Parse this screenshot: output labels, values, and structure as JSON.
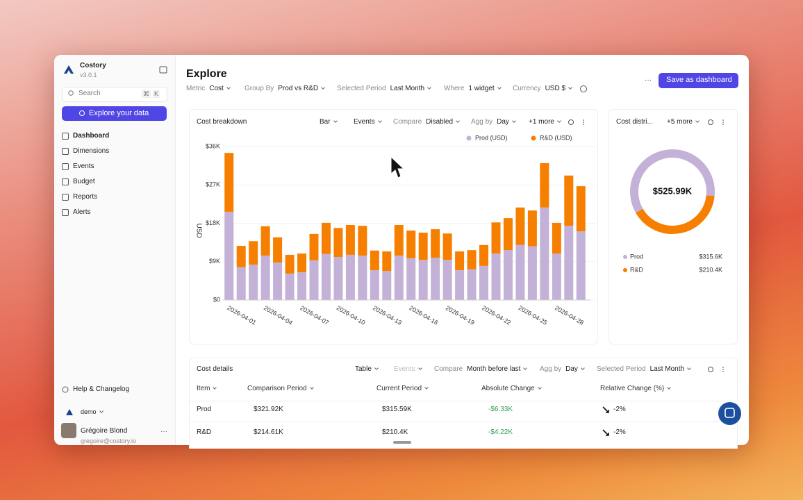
{
  "app": {
    "name": "Costory",
    "version": "v3.0.1",
    "search": "Search",
    "search_keys": [
      "⌘",
      "K"
    ],
    "cta": "Explore your data",
    "nav": [
      "Dashboard",
      "Dimensions",
      "Events",
      "Budget",
      "Reports",
      "Alerts"
    ],
    "help": "Help & Changelog",
    "workspace": "demo",
    "user": {
      "name": "Grégoire Blond",
      "email": "gregoire@costory.io"
    }
  },
  "header": {
    "title": "Explore",
    "filters": [
      {
        "label": "Metric",
        "value": "Cost"
      },
      {
        "label": "Group By",
        "value": "Prod vs R&D"
      },
      {
        "label": "Selected Period",
        "value": "Last Month"
      },
      {
        "label": "Where",
        "value": "1 widget"
      },
      {
        "label": "Currency",
        "value": "USD $"
      }
    ],
    "more": "···",
    "save": "Save as dashboard"
  },
  "panels": {
    "breakdown": {
      "title": "Cost breakdown",
      "controls": [
        {
          "value": "Bar"
        },
        {
          "value": "Events"
        },
        {
          "label": "Compare",
          "value": "Disabled"
        },
        {
          "label": "Agg by",
          "value": "Day"
        },
        {
          "value": "+1 more"
        }
      ]
    },
    "distribution": {
      "title": "Cost distri...",
      "controls": [
        {
          "value": "+5 more"
        }
      ]
    },
    "details": {
      "title": "Cost details",
      "controls": [
        {
          "value": "Table"
        },
        {
          "value": "Events"
        },
        {
          "label": "Compare",
          "value": "Month before last"
        },
        {
          "label": "Agg by",
          "value": "Day"
        },
        {
          "label": "Selected Period",
          "value": "Last Month"
        }
      ]
    }
  },
  "table": {
    "columns": [
      "Item",
      "Comparison Period",
      "Current Period",
      "Absolute Change",
      "Relative Change (%)"
    ],
    "rows": [
      [
        "Prod",
        "$321.92K",
        "$315.59K",
        "-$6.33K",
        "-2%"
      ],
      [
        "R&D",
        "$214.61K",
        "$210.4K",
        "-$4.22K",
        "-2%"
      ]
    ]
  },
  "chart_data": [
    {
      "type": "bar",
      "stacked": true,
      "y_label": "USD",
      "categories": [
        "2026-04-01",
        null,
        null,
        "2026-04-04",
        null,
        null,
        "2026-04-07",
        null,
        null,
        "2026-04-10",
        null,
        null,
        "2026-04-13",
        null,
        null,
        "2026-04-16",
        null,
        null,
        "2026-04-19",
        null,
        null,
        "2026-04-22",
        null,
        null,
        "2026-04-25",
        null,
        null,
        "2026-04-28",
        null,
        null
      ],
      "series": [
        {
          "name": "Prod (USD)",
          "color": "#c3b1d8",
          "values": [
            20.7,
            7.7,
            8.3,
            10.4,
            8.8,
            6.2,
            6.5,
            9.3,
            10.8,
            10.1,
            10.6,
            10.4,
            7.0,
            6.8,
            10.4,
            9.8,
            9.4,
            9.9,
            9.4,
            7.0,
            7.2,
            8.0,
            10.9,
            11.7,
            12.9,
            12.6,
            21.7,
            10.9,
            17.4,
            16.1
          ]
        },
        {
          "name": "R&D (USD)",
          "color": "#f77f00",
          "values": [
            13.8,
            5.0,
            5.5,
            6.9,
            5.9,
            4.4,
            4.4,
            6.2,
            7.3,
            6.8,
            7.0,
            7.0,
            4.6,
            4.6,
            7.2,
            6.5,
            6.4,
            6.7,
            6.2,
            4.4,
            4.5,
            4.9,
            7.3,
            7.5,
            8.8,
            8.4,
            10.4,
            7.2,
            11.8,
            10.6
          ]
        }
      ],
      "ylim": [
        0,
        36
      ],
      "yticks": [
        {
          "value": 0,
          "label": "$0"
        },
        {
          "value": 9,
          "label": "$9K"
        },
        {
          "value": 18,
          "label": "$18K"
        },
        {
          "value": 27,
          "label": "$27K"
        },
        {
          "value": 36,
          "label": "$36K"
        }
      ],
      "grid": true,
      "legend": "top-right"
    },
    {
      "type": "pie",
      "donut": true,
      "categories": [
        "Prod",
        "R&D"
      ],
      "values": [
        315.6,
        210.4
      ],
      "value_labels": [
        "$315.6K",
        "$210.4K"
      ],
      "colors": [
        "#c3b1d8",
        "#f77f00"
      ],
      "center_label": "$525.99K"
    }
  ]
}
